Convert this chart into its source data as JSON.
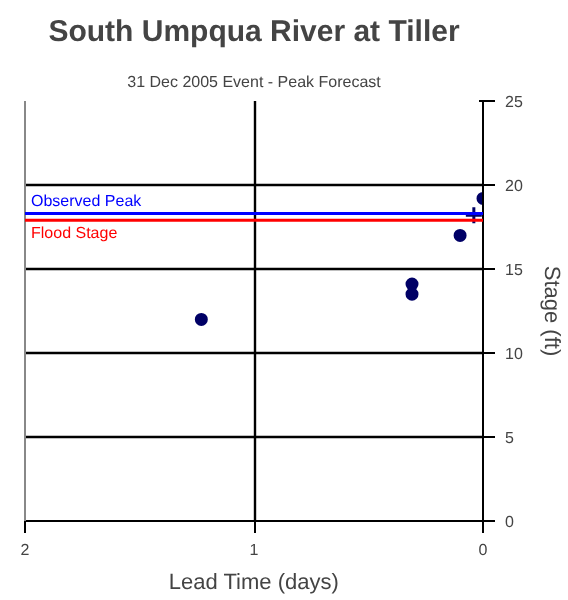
{
  "chart_data": {
    "type": "scatter",
    "title": "South Umpqua River at Tiller",
    "subtitle": "31 Dec 2005 Event - Peak Forecast",
    "xlabel": "Lead Time (days)",
    "ylabel": "Stage (ft)",
    "series": [
      {
        "color": "#000066",
        "marker": "circle",
        "x": [
          1.23,
          0.31,
          0.31,
          0.1,
          0.0
        ],
        "values": [
          12.0,
          14.1,
          13.5,
          17.0,
          19.2
        ]
      },
      {
        "color": "#000066",
        "marker": "cross",
        "x": [
          0.04
        ],
        "values": [
          18.2
        ]
      }
    ],
    "xlim": [
      2,
      0
    ],
    "ylim": [
      0,
      25
    ],
    "xticks": [
      2,
      1,
      0
    ],
    "yticks": [
      0,
      5,
      10,
      15,
      20,
      25
    ],
    "grid": true,
    "ref_lines": [
      {
        "axis": "y",
        "value": 18.3,
        "label": "Observed Peak",
        "color": "#0000ff"
      },
      {
        "axis": "y",
        "value": 17.9,
        "label": "Flood Stage",
        "color": "#ff0000"
      }
    ]
  }
}
